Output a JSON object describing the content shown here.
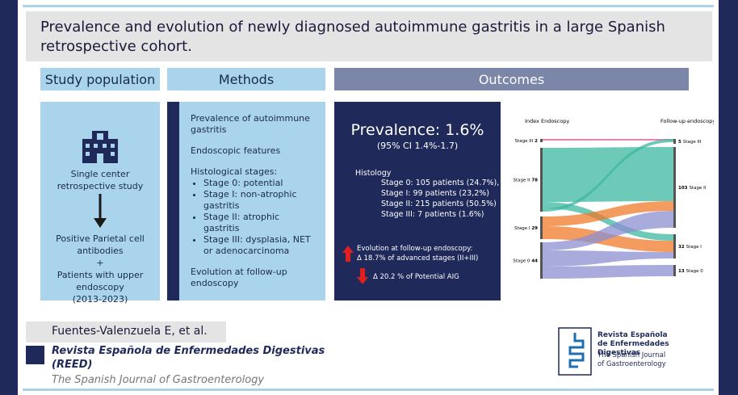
{
  "header": {
    "title": "Prevalence and evolution of newly diagnosed autoimmune gastritis in a large Spanish retrospective cohort."
  },
  "study_population": {
    "heading": "Study population",
    "items": [
      "Single center retrospective study",
      "Positive Parietal cell antibodies",
      "+",
      "Patients with upper endoscopy",
      "(2013-2023)"
    ]
  },
  "methods": {
    "heading": "Methods",
    "prevalence": "Prevalence of autoimmune gastritis",
    "endoscopic": "Endoscopic features",
    "histological": "Histological stages:",
    "stages": [
      "Stage 0: potential",
      "Stage I: non-atrophic gastritis",
      "Stage II: atrophic gastritis",
      "Stage III: dysplasia, NET or adenocarcinoma"
    ],
    "evolution": "Evolution at follow-up endoscopy"
  },
  "outcomes": {
    "heading": "Outcomes",
    "prevalence": "Prevalence: 1.6%",
    "ci": "(95% CI 1.4%-1.7)",
    "histology_label": "Histology",
    "histology": [
      "Stage 0: 105 patients (24.7%),",
      "Stage I: 99 patients (23,2%)",
      "Stage II: 215 patients (50.5%)",
      "Stage III: 7 patients (1.6%)"
    ],
    "evolution": "Evolution at follow-up endoscopy:",
    "advanced": "Δ 18.7% of advanced stages (II+III)",
    "potential": "Δ 20.2 % of Potential AIG"
  },
  "sankey": {
    "index_label": "Index Endoscopy",
    "followup_label": "Follow-up endoscopy",
    "left": [
      {
        "label": "Stage III",
        "count": 2
      },
      {
        "label": "Stage II",
        "count": 78
      },
      {
        "label": "Stage I",
        "count": 29
      },
      {
        "label": "Stage 0",
        "count": 44
      }
    ],
    "right": [
      {
        "label": "Stage III",
        "count": 5
      },
      {
        "label": "Stage II",
        "count": 103
      },
      {
        "label": "Stage I",
        "count": 32
      },
      {
        "label": "Stage 0",
        "count": 13
      }
    ]
  },
  "footer": {
    "authors": "Fuentes-Valenzuela E, et al.",
    "journal": "Revista Española de Enfermedades Digestivas (REED)",
    "journal_en": "The Spanish Journal of Gastroenterology"
  },
  "logo": {
    "line1": "Revista Española",
    "line2": "de Enfermedades Digestivas",
    "line3": "The Spanish Journal",
    "line4": "of Gastroenterology"
  }
}
